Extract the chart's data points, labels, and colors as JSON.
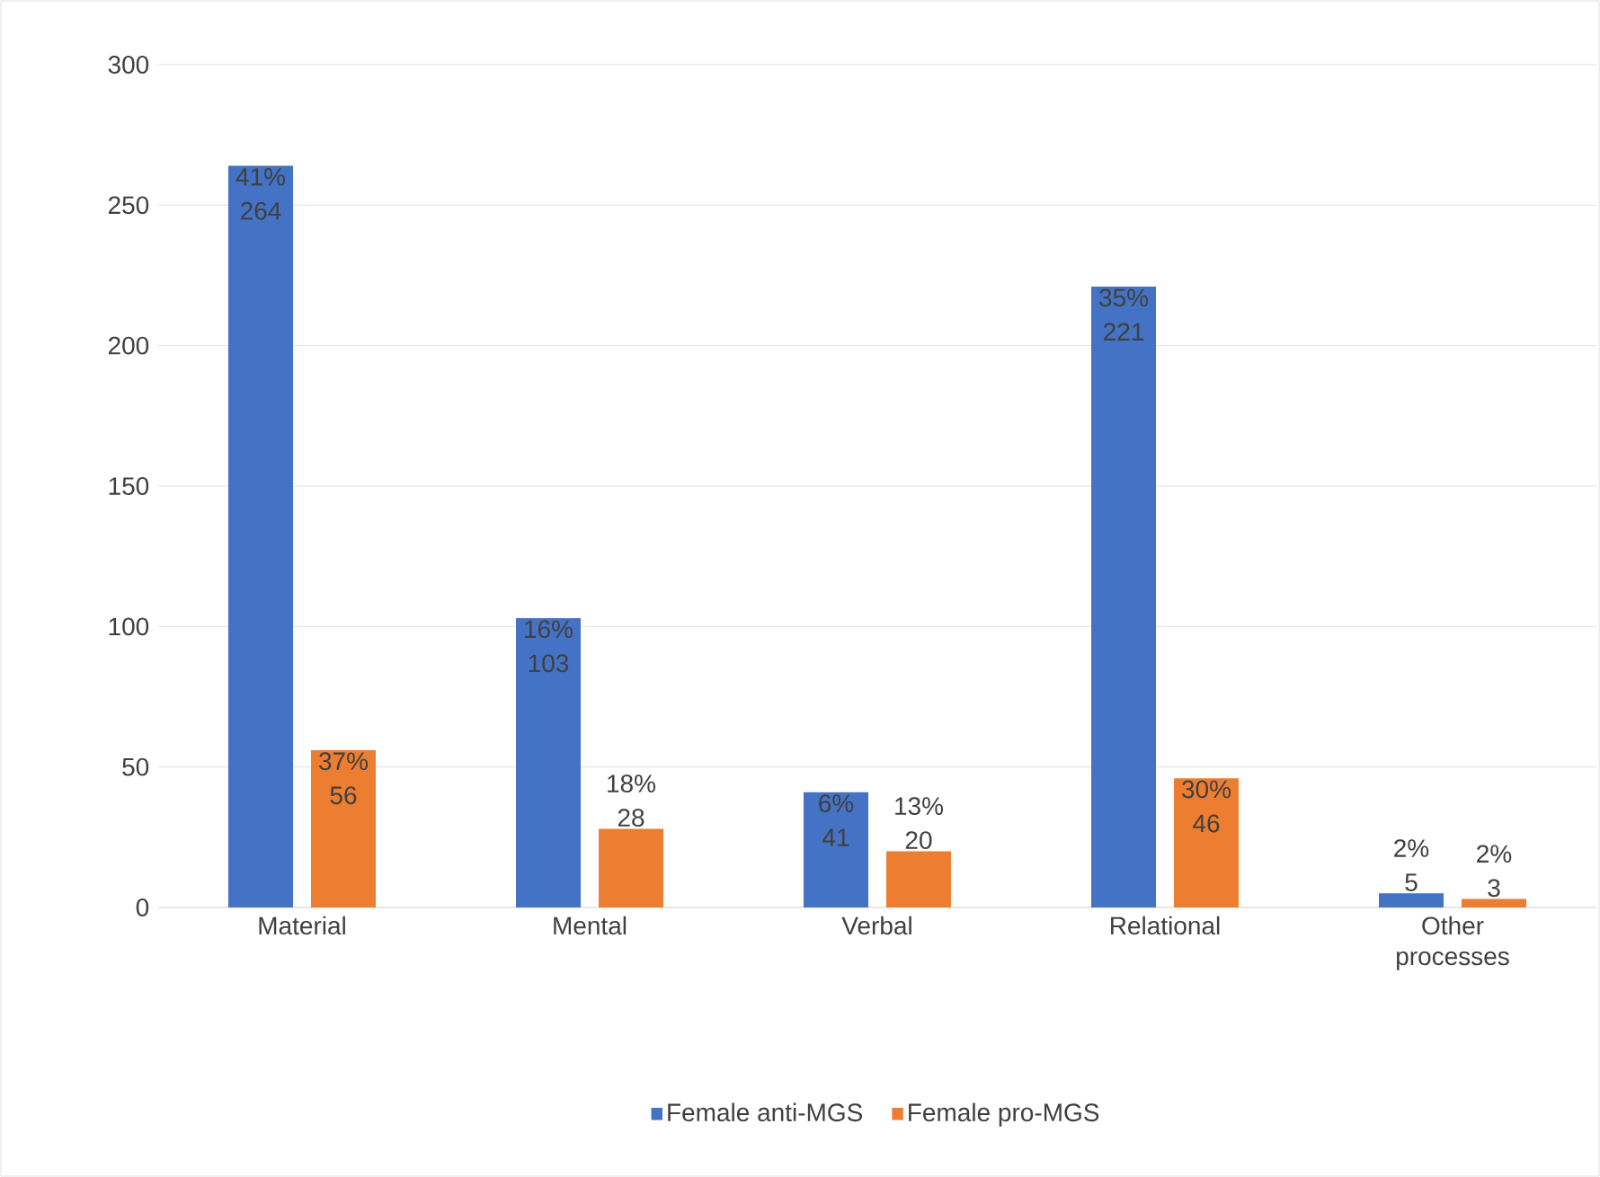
{
  "chart_data": {
    "type": "bar",
    "categories": [
      "Material",
      "Mental",
      "Verbal",
      "Relational",
      "Other processes"
    ],
    "series": [
      {
        "name": "Female anti-MGS",
        "color": "#4472c4",
        "values": [
          264,
          103,
          41,
          221,
          5
        ],
        "value_labels": [
          "41% 264",
          "16% 103",
          "6% 41",
          "35% 221",
          "2% 5"
        ]
      },
      {
        "name": "Female pro-MGS",
        "color": "#ed7d31",
        "values": [
          56,
          28,
          20,
          46,
          3
        ],
        "value_labels": [
          "37% 56",
          "18% 28",
          "13% 20",
          "30% 46",
          "2% 3"
        ]
      }
    ],
    "ylim": [
      0,
      300
    ],
    "yticks": [
      0,
      50,
      100,
      150,
      200,
      250,
      300
    ],
    "grid": "y",
    "legend": "bottom"
  }
}
